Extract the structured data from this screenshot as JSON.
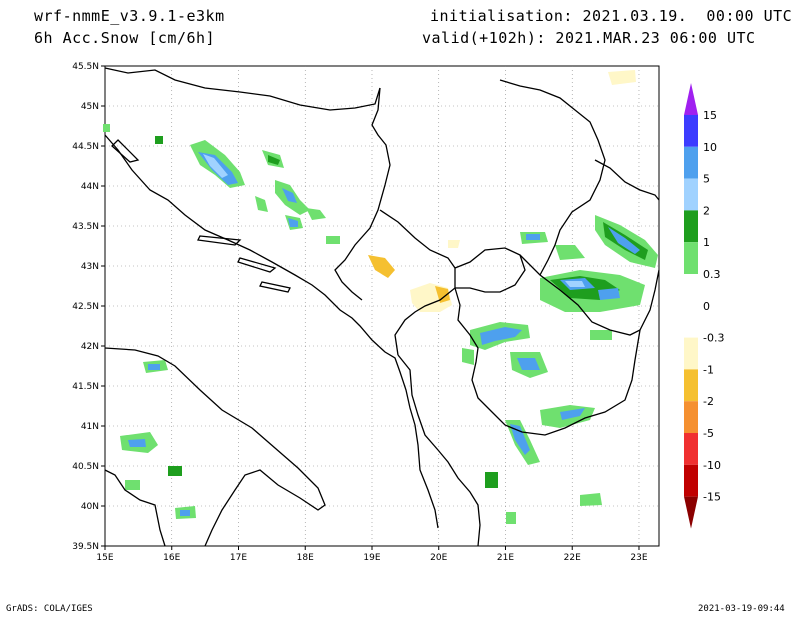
{
  "header": {
    "model": "wrf-nmmE_v3.9.1-e3km",
    "field": "6h Acc.Snow [cm/6h]",
    "init": "initialisation: 2021.03.19.  00:00 UTC",
    "valid": "valid(+102h): 2021.MAR.23 06:00 UTC"
  },
  "map": {
    "lon_ticks": [
      "15E",
      "16E",
      "17E",
      "18E",
      "19E",
      "20E",
      "21E",
      "22E",
      "23E"
    ],
    "lat_ticks": [
      "45.5N",
      "45N",
      "44.5N",
      "44N",
      "43.5N",
      "43N",
      "42.5N",
      "42N",
      "41.5N",
      "41N",
      "40.5N",
      "40N",
      "39.5N"
    ],
    "lon_range": [
      15,
      23.3
    ],
    "lat_range": [
      39.5,
      45.5
    ],
    "grid": "dotted"
  },
  "colorbar": {
    "levels": [
      "15",
      "10",
      "5",
      "2",
      "1",
      "0.3",
      "0",
      "-0.3",
      "-1",
      "-2",
      "-5",
      "-10",
      "-15"
    ],
    "colors": {
      "gt15": "#a020f0",
      "10_15": "#3c3cff",
      "5_10": "#4ea0ee",
      "2_5": "#a0d2ff",
      "1_2": "#1e9e1e",
      "0.3_1": "#6fe06f",
      "neutral": "#ffffff",
      "m0.3_m1": "#fff7c8",
      "m1_m2": "#f5c030",
      "m2_m5": "#f59030",
      "m5_m10": "#f03030",
      "m10_m15": "#c00000",
      "lt_m15": "#8b0000"
    }
  },
  "footer": {
    "left": "GrADS: COLA/IGES",
    "right": "2021-03-19-09:44"
  }
}
